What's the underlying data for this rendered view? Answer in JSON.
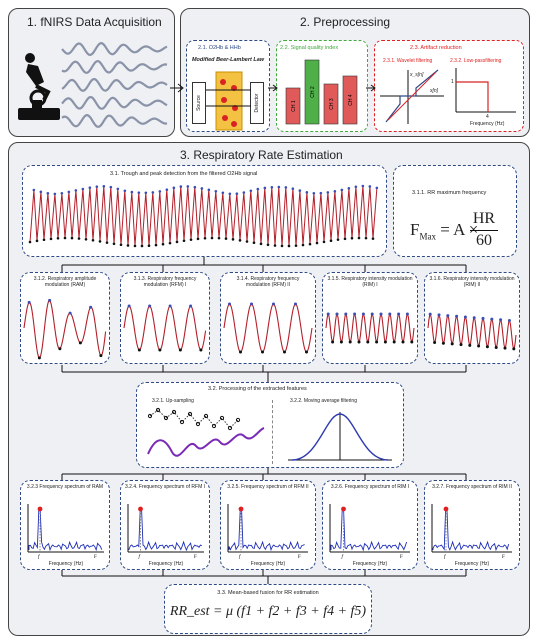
{
  "acq": {
    "title": "1. fNIRS Data Acquisition"
  },
  "pre": {
    "title": "2. Preprocessing",
    "o2hb": "2.1. O2Hb & HHb",
    "mbll": "Modified Beer-Lambert Law",
    "source": "Source",
    "detector": "Detector",
    "sqi": "2.2. Signal quality index",
    "channels": [
      "CH 1",
      "CH 2",
      "CH 3",
      "CH 4"
    ],
    "artifact": "2.3. Artifact reduction",
    "wavelet": "2.3.1. Wavelet filtering",
    "lowpass": "2.3.2. Low-passfiltering",
    "wf_y": "x_s[n]",
    "wf_x": "x[n]",
    "lp_one": "1",
    "lp_xlabel": "Frequency (Hz)",
    "lp_four": "4"
  },
  "rr": {
    "title": "3. Respiratory Rate Estimation",
    "trough": "3.1. Trough and peak detection from the filtered O2Hb signal",
    "maxf": "3.1.1. RR maximum frequency",
    "formula_lhs": "F",
    "formula_sub": "Max",
    "formula_mid": " = A ×",
    "formula_num": "HR",
    "formula_den": "60",
    "feats": [
      "3.1.2. Respiratory amplitude modulation (RAM)",
      "3.1.3. Respiratory frequency modulation (RFM) I",
      "3.1.4. Respiratory frequency modulation (RFM) II",
      "3.1.5. Respiratory intensity modulation (RIM) I",
      "3.1.6. Respiratory intensity modulation (RIM) II"
    ],
    "proc": "3.2. Processing of the extracted features",
    "upsamp": "3.2.1. Up-sampling",
    "movavg": "3.2.2. Moving average filtering",
    "spectra": [
      "3.2.3 Frequency spectrum of RAM",
      "3.2.4. Frequency spectrum of RFM I",
      "3.2.5. Frequency spectrum of RFM II",
      "3.2.6. Frequency spectrum of RIM I",
      "3.2.7. Frequency spectrum of RIM II"
    ],
    "spec_xlabel": "Frequency (Hz)",
    "spec_f1": "f",
    "spec_fmax": "F",
    "fusion": "3.3. Mean-based fusion for RR estimation",
    "fusion_eq": "RR_est = μ (f1 + f2 + f3 + f4 + f5)"
  },
  "colors": {
    "signal": "#b3202a",
    "peak": "#3a4fb5",
    "spectrum": "#1f2fb8",
    "sqi_green": "#4fb04a",
    "sqi_red": "#e05a5a",
    "dash_blue": "#2e4a86",
    "dash_green": "#3fa93b",
    "dash_red": "#e02020",
    "bg": "#eef0f4"
  },
  "icons": [
    "cyclist-icon",
    "wave-icon",
    "arrow-icon"
  ]
}
